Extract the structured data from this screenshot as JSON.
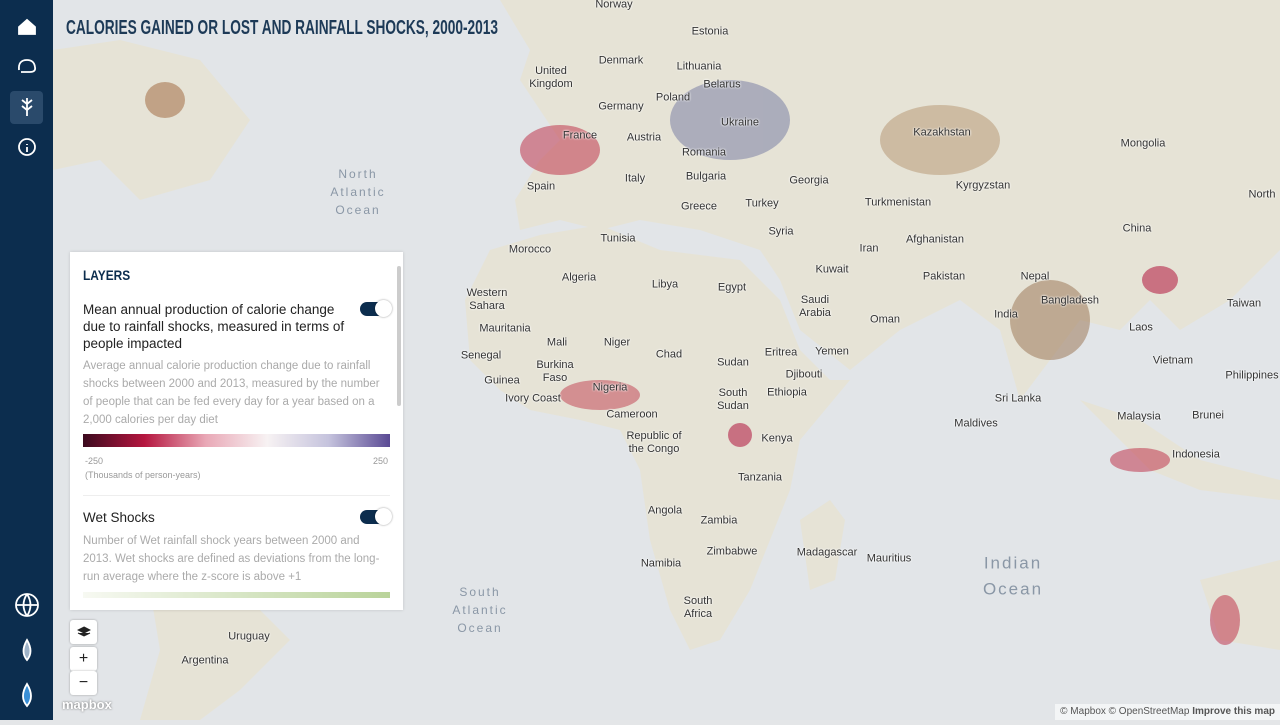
{
  "header": {
    "title": "CALORIES GAINED OR LOST AND RAINFALL SHOCKS, 2000-2013"
  },
  "map": {
    "labels": [
      "Norway",
      "Estonia",
      "Denmark",
      "Lithuania",
      "United Kingdom",
      "Belarus",
      "Germany",
      "Poland",
      "Ukraine",
      "France",
      "Austria",
      "Kazakhstan",
      "Mongolia",
      "Romania",
      "Italy",
      "Bulgaria",
      "Georgia",
      "Kyrgyzstan",
      "Spain",
      "Greece",
      "Turkey",
      "Turkmenistan",
      "Tunisia",
      "Syria",
      "Afghanistan",
      "China",
      "North",
      "Morocco",
      "Iran",
      "Kuwait",
      "Algeria",
      "Libya",
      "Egypt",
      "Pakistan",
      "Nepal",
      "Western Sahara",
      "Saudi Arabia",
      "Bangladesh",
      "Taiwan",
      "Oman",
      "India",
      "Mauritania",
      "Mali",
      "Niger",
      "Chad",
      "Laos",
      "Yemen",
      "Eritrea",
      "Senegal",
      "Sudan",
      "Vietnam",
      "Burkina Faso",
      "Djibouti",
      "Guinea",
      "Nigeria",
      "Ethiopia",
      "South Sudan",
      "Philippines",
      "Ivory Coast",
      "Sri Lanka",
      "Malaysia",
      "Brunei",
      "Cameroon",
      "Maldives",
      "Kenya",
      "Republic of the Congo",
      "Indonesia",
      "Tanzania",
      "Angola",
      "Zambia",
      "Zimbabwe",
      "Madagascar",
      "Mauritius",
      "Namibia",
      "South Africa",
      "Uruguay",
      "Argentina"
    ],
    "oceans": [
      "North Atlantic Ocean",
      "South Atlantic Ocean",
      "Indian Ocean"
    ]
  },
  "layers_panel": {
    "title": "LAYERS",
    "layers": [
      {
        "title": "Mean annual production of calorie change due to rainfall shocks, measured in terms of people impacted",
        "description": "Average annual calorie production change due to rainfall shocks between 2000 and 2013, measured by the number of people that can be fed every day for a year based on a 2,000 calories per day diet",
        "legend": {
          "min": -250,
          "max": 250,
          "unit": "(Thousands of person-years)"
        }
      },
      {
        "title": "Wet Shocks",
        "description": "Number of Wet rainfall shock years between 2000 and 2013. Wet shocks are defined as deviations from the long-run average where the z-score is above +1"
      }
    ]
  },
  "controls": {
    "zoom_in": "+",
    "zoom_out": "−"
  },
  "attribution": {
    "logo": "mapbox",
    "text": "© Mapbox © OpenStreetMap",
    "link": "Improve this map"
  }
}
